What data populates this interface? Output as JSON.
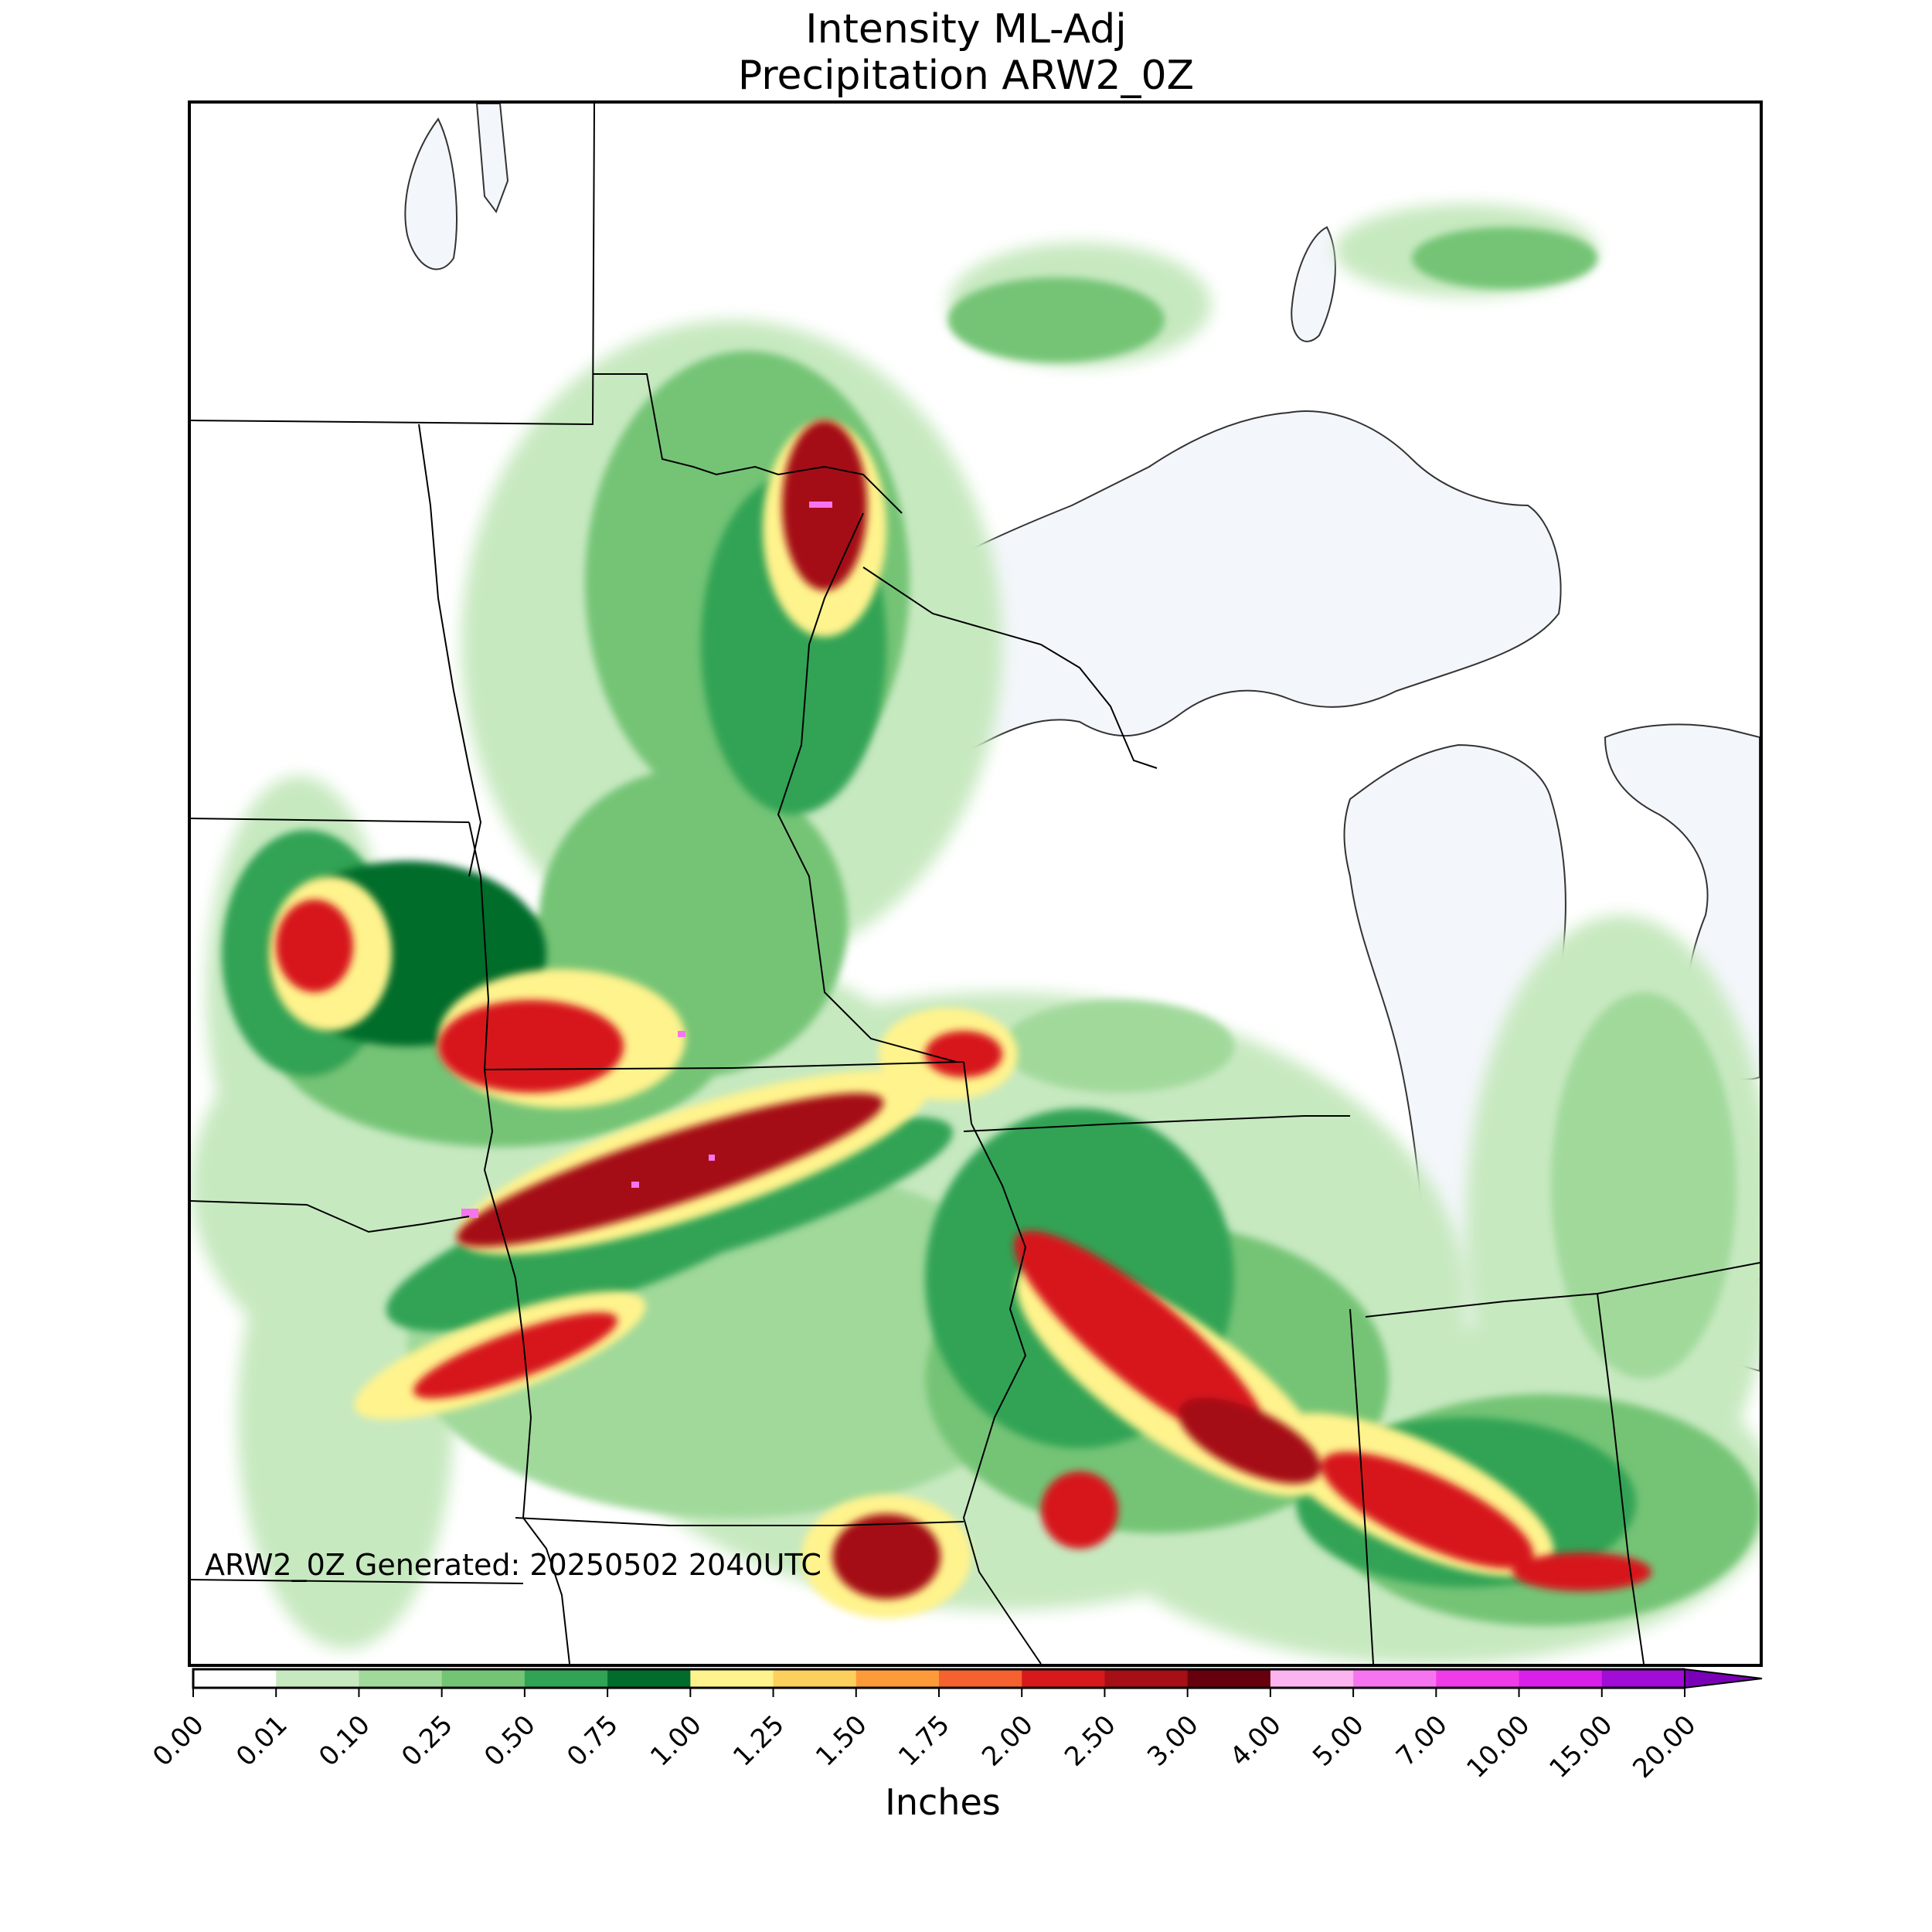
{
  "title": {
    "line1": "Intensity ML-Adj",
    "line2": "Precipitation ARW2_0Z"
  },
  "map": {
    "generated_label": "ARW2_0Z Generated: 20250502 2040UTC",
    "water_color": "#f3f6fa",
    "border_color": "#000000"
  },
  "colorbar": {
    "unit_label": "Inches",
    "ticks": [
      "0.00",
      "0.01",
      "0.10",
      "0.25",
      "0.50",
      "0.75",
      "1.00",
      "1.25",
      "1.50",
      "1.75",
      "2.00",
      "2.50",
      "3.00",
      "4.00",
      "5.00",
      "7.00",
      "10.00",
      "15.00",
      "20.00"
    ],
    "colors": [
      "#ffffff",
      "#c7e9c0",
      "#a1d99b",
      "#74c476",
      "#31a354",
      "#006d2c",
      "#fff38d",
      "#fdcf5c",
      "#fd9b3a",
      "#f5622f",
      "#d7191c",
      "#a50f15",
      "#67000d",
      "#fbb4f0",
      "#f774f0",
      "#f03ce8",
      "#d91fea",
      "#a10cd6",
      "#7a00b8"
    ],
    "extend": "max"
  }
}
